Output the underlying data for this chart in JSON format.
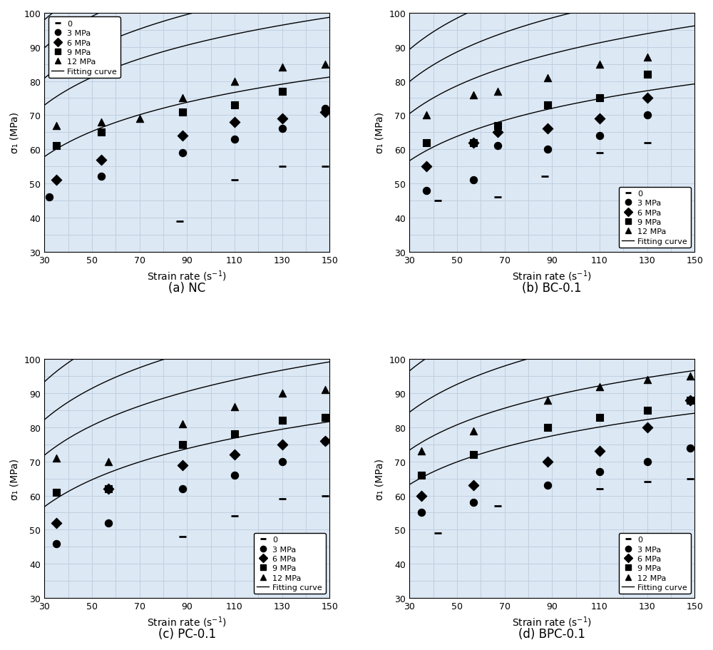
{
  "panels": [
    {
      "title": "(a) NC",
      "legend_loc": "upper left",
      "scatter": {
        "0": {
          "x": [
            87,
            110,
            130,
            148
          ],
          "y": [
            39,
            51,
            55,
            55
          ]
        },
        "3": {
          "x": [
            32,
            54,
            88,
            110,
            130,
            148
          ],
          "y": [
            46,
            52,
            59,
            63,
            66,
            72
          ]
        },
        "6": {
          "x": [
            35,
            54,
            88,
            110,
            130,
            148
          ],
          "y": [
            51,
            57,
            64,
            68,
            69,
            71
          ]
        },
        "9": {
          "x": [
            35,
            54,
            88,
            110,
            130
          ],
          "y": [
            61,
            65,
            71,
            73,
            77
          ]
        },
        "12": {
          "x": [
            35,
            54,
            70,
            88,
            110,
            130,
            148
          ],
          "y": [
            67,
            68,
            69,
            75,
            80,
            84,
            85
          ]
        }
      },
      "curves": {
        "0": {
          "a": 14.5,
          "b": 8.5
        },
        "3": {
          "a": 16.0,
          "b": 18.5
        },
        "6": {
          "a": 17.0,
          "b": 23.0
        },
        "9": {
          "a": 18.0,
          "b": 28.5
        },
        "12": {
          "a": 18.5,
          "b": 35.0
        }
      }
    },
    {
      "title": "(b) BC-0.1",
      "legend_loc": "lower right",
      "scatter": {
        "0": {
          "x": [
            42,
            67,
            87,
            110,
            130
          ],
          "y": [
            45,
            46,
            52,
            59,
            62
          ]
        },
        "3": {
          "x": [
            37,
            57,
            67,
            88,
            110,
            130
          ],
          "y": [
            48,
            51,
            61,
            60,
            64,
            70
          ]
        },
        "6": {
          "x": [
            37,
            57,
            67,
            88,
            110,
            130
          ],
          "y": [
            55,
            62,
            65,
            66,
            69,
            75
          ]
        },
        "9": {
          "x": [
            37,
            57,
            67,
            88,
            110,
            130
          ],
          "y": [
            62,
            62,
            67,
            73,
            75,
            82
          ]
        },
        "12": {
          "x": [
            37,
            57,
            67,
            88,
            110,
            130
          ],
          "y": [
            70,
            76,
            77,
            81,
            85,
            87
          ]
        }
      },
      "curves": {
        "0": {
          "a": 14.0,
          "b": 9.0
        },
        "3": {
          "a": 16.0,
          "b": 16.0
        },
        "6": {
          "a": 17.0,
          "b": 22.0
        },
        "9": {
          "a": 18.0,
          "b": 28.0
        },
        "12": {
          "a": 19.0,
          "b": 36.0
        }
      }
    },
    {
      "title": "(c) PC-0.1",
      "legend_loc": "lower right",
      "scatter": {
        "0": {
          "x": [
            88,
            110,
            130,
            148
          ],
          "y": [
            48,
            54,
            59,
            60
          ]
        },
        "3": {
          "x": [
            35,
            57,
            88,
            110,
            130,
            148
          ],
          "y": [
            46,
            52,
            62,
            66,
            70,
            76
          ]
        },
        "6": {
          "x": [
            35,
            57,
            88,
            110,
            130,
            148
          ],
          "y": [
            52,
            62,
            69,
            72,
            75,
            76
          ]
        },
        "9": {
          "x": [
            35,
            57,
            88,
            110,
            130,
            148
          ],
          "y": [
            61,
            62,
            75,
            78,
            82,
            83
          ]
        },
        "12": {
          "x": [
            35,
            57,
            88,
            110,
            130,
            148
          ],
          "y": [
            71,
            70,
            81,
            86,
            90,
            91
          ]
        }
      },
      "curves": {
        "0": {
          "a": 15.5,
          "b": 4.0
        },
        "3": {
          "a": 17.0,
          "b": 14.0
        },
        "6": {
          "a": 18.0,
          "b": 21.0
        },
        "9": {
          "a": 19.5,
          "b": 27.0
        },
        "12": {
          "a": 21.0,
          "b": 34.0
        }
      }
    },
    {
      "title": "(d) BPC-0.1",
      "legend_loc": "lower right",
      "scatter": {
        "0": {
          "x": [
            42,
            67,
            110,
            130,
            148
          ],
          "y": [
            49,
            57,
            62,
            64,
            65
          ]
        },
        "3": {
          "x": [
            35,
            57,
            88,
            110,
            130,
            148
          ],
          "y": [
            55,
            58,
            63,
            67,
            70,
            74
          ]
        },
        "6": {
          "x": [
            35,
            57,
            88,
            110,
            130,
            148
          ],
          "y": [
            60,
            63,
            70,
            73,
            80,
            88
          ]
        },
        "9": {
          "x": [
            35,
            57,
            88,
            110,
            130,
            148
          ],
          "y": [
            66,
            72,
            80,
            83,
            85,
            88
          ]
        },
        "12": {
          "x": [
            35,
            57,
            88,
            110,
            130,
            148
          ],
          "y": [
            73,
            79,
            88,
            92,
            94,
            95
          ]
        }
      },
      "curves": {
        "0": {
          "a": 13.0,
          "b": 19.0
        },
        "3": {
          "a": 14.5,
          "b": 24.0
        },
        "6": {
          "a": 16.0,
          "b": 30.0
        },
        "9": {
          "a": 17.5,
          "b": 37.0
        },
        "12": {
          "a": 19.0,
          "b": 44.0
        }
      }
    }
  ],
  "markers": {
    "0": "_",
    "3": "o",
    "6": "D",
    "9": "s",
    "12": "^"
  },
  "legend_labels": {
    "0": "0",
    "3": "3 MPa",
    "6": "6 MPa",
    "9": "9 MPa",
    "12": "12 MPa"
  },
  "xlabel": "Strain rate (s⁻¹)",
  "ylabel": "σ₁ (MPa)",
  "xlim": [
    30,
    150
  ],
  "ylim": [
    30,
    100
  ],
  "xticks": [
    30,
    50,
    70,
    90,
    110,
    130,
    150
  ],
  "yticks": [
    30,
    40,
    50,
    60,
    70,
    80,
    90,
    100
  ],
  "minor_xticks": [
    40,
    60,
    80,
    100,
    120,
    140
  ],
  "minor_yticks": [
    35,
    45,
    55,
    65,
    75,
    85,
    95
  ],
  "curve_color": "black",
  "marker_color": "black",
  "grid_color": "#c0cfe0",
  "background_color": "#dce8f4",
  "figure_bg": "#ffffff"
}
